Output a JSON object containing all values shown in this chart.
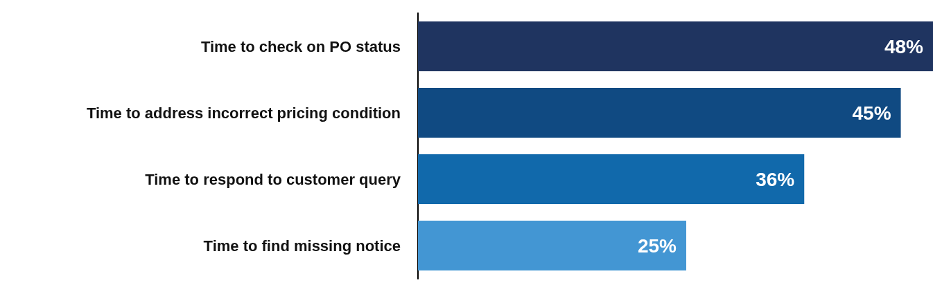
{
  "chart_data": {
    "type": "bar",
    "orientation": "horizontal",
    "categories": [
      "Time to check on PO status",
      "Time to address incorrect pricing condition",
      "Time to respond to customer query",
      "Time to find missing notice"
    ],
    "values": [
      48,
      45,
      36,
      25
    ],
    "colors": [
      "#1f3460",
      "#104a82",
      "#1169ab",
      "#4396d3"
    ],
    "value_labels": [
      "48%",
      "45%",
      "36%",
      "25%"
    ],
    "grid": false
  }
}
